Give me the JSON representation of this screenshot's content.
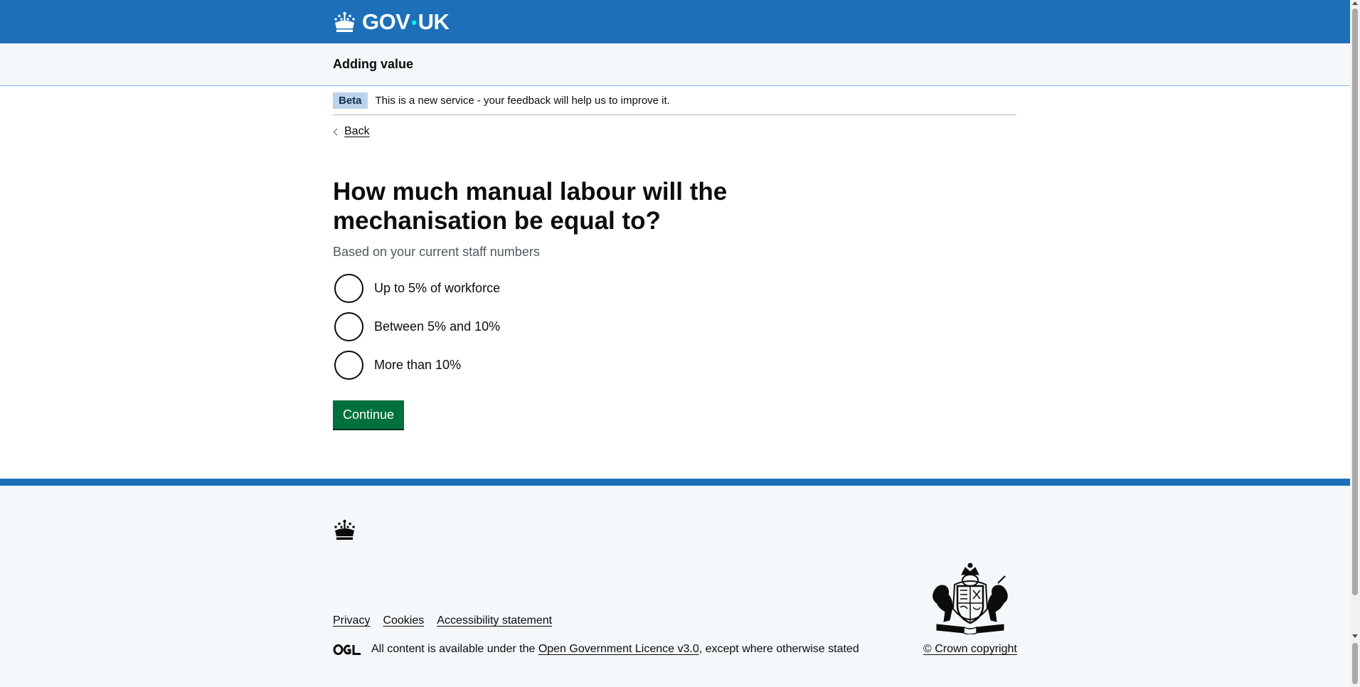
{
  "header": {
    "logo_text_left": "GOV",
    "logo_dot": "•",
    "logo_text_right": "UK",
    "logo_icon": "crown-icon",
    "background_color": "#1d70b8"
  },
  "service": {
    "name": "Adding value"
  },
  "phase_banner": {
    "tag": "Beta",
    "text": "This is a new service - your feedback will help us to improve it."
  },
  "back_link": {
    "label": "Back",
    "icon": "chevron-left-icon"
  },
  "form": {
    "question": "How much manual labour will the mechanisation be equal to?",
    "hint": "Based on your current staff numbers",
    "options": [
      {
        "label": "Up to 5% of workforce",
        "selected": false
      },
      {
        "label": "Between 5% and 10%",
        "selected": false
      },
      {
        "label": "More than 10%",
        "selected": false
      }
    ],
    "continue_label": "Continue",
    "button_color": "#00703c"
  },
  "footer": {
    "links": [
      "Privacy",
      "Cookies",
      "Accessibility statement"
    ],
    "licence_prefix": "All content is available under the ",
    "licence_link": "Open Government Licence v3.0",
    "licence_suffix": ", except where otherwise stated",
    "copyright": "© Crown copyright",
    "ogl_icon": "ogl-logo-icon",
    "crest_icon": "royal-coat-of-arms-icon"
  }
}
